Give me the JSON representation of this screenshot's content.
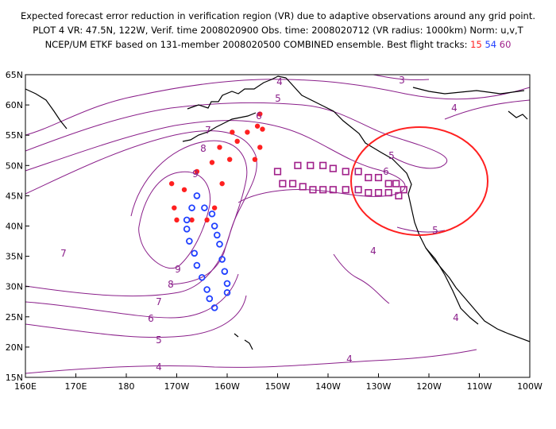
{
  "header": {
    "line1": "Expected forecast error reduction in verification region (VR) due to adaptive observations around any grid point.",
    "line2": "PLOT 4 VR: 47.5N, 122W, Verif. time 2008020900 Obs. time: 2008020712 (VR radius: 1000km) Norm: u,v,T",
    "line3_prefix": "NCEP/UM ETKF based on 131-member 2008020500 COMBINED ensemble.  Best flight tracks:",
    "track_ids": [
      "15",
      "54",
      "60"
    ]
  },
  "map": {
    "lat_labels": [
      "65N",
      "60N",
      "55N",
      "50N",
      "45N",
      "40N",
      "35N",
      "30N",
      "25N",
      "20N",
      "15N"
    ],
    "lon_labels": [
      "160E",
      "170E",
      "180",
      "170W",
      "160W",
      "150W",
      "140W",
      "130W",
      "120W",
      "110W",
      "100W"
    ],
    "contour_labels": [
      "3",
      "4",
      "4",
      "4",
      "4",
      "4",
      "4",
      "5",
      "5",
      "5",
      "5",
      "6",
      "6",
      "6",
      "7",
      "7",
      "7",
      "8",
      "8",
      "9",
      "9"
    ],
    "colors": {
      "contour": "#8a1f8a",
      "track15": "#ff2020",
      "track54": "#2040ff",
      "track60": "#a0208a",
      "vr_circle": "#ff2020",
      "coast": "#000000"
    },
    "verification_region": {
      "center_lat": 47.5,
      "center_lon": -122,
      "radius_km": 1000
    },
    "tracks": [
      {
        "id": "15",
        "marker": "filled-circle",
        "points": [
          [
            47,
            -171
          ],
          [
            43,
            -170.5
          ],
          [
            41,
            -170
          ],
          [
            41,
            -167
          ],
          [
            41,
            -164
          ],
          [
            43,
            -162.5
          ],
          [
            47,
            -161
          ],
          [
            51,
            -159.5
          ],
          [
            54,
            -158
          ],
          [
            55.5,
            -156
          ],
          [
            56.5,
            -154
          ],
          [
            58.5,
            -153.5
          ],
          [
            56,
            -153
          ],
          [
            53,
            -153.5
          ],
          [
            51,
            -154.5
          ],
          [
            55.5,
            -159
          ],
          [
            53,
            -161.5
          ],
          [
            50.5,
            -163
          ],
          [
            49,
            -166
          ],
          [
            46,
            -168.5
          ]
        ]
      },
      {
        "id": "54",
        "marker": "open-circle",
        "points": [
          [
            45,
            -166
          ],
          [
            43,
            -167
          ],
          [
            41,
            -168
          ],
          [
            39.5,
            -168
          ],
          [
            37.5,
            -167.5
          ],
          [
            35.5,
            -166.5
          ],
          [
            33.5,
            -166
          ],
          [
            31.5,
            -165
          ],
          [
            29.5,
            -164
          ],
          [
            28,
            -163.5
          ],
          [
            26.5,
            -162.5
          ],
          [
            29,
            -160
          ],
          [
            30.5,
            -160
          ],
          [
            32.5,
            -160.5
          ],
          [
            34.5,
            -161
          ],
          [
            37,
            -161.5
          ],
          [
            38.5,
            -162
          ],
          [
            40,
            -162.5
          ],
          [
            42,
            -163
          ],
          [
            43,
            -164.5
          ]
        ]
      },
      {
        "id": "60",
        "marker": "open-square",
        "points": [
          [
            49,
            -150
          ],
          [
            47,
            -149
          ],
          [
            47,
            -147
          ],
          [
            46.5,
            -145
          ],
          [
            46,
            -143
          ],
          [
            46,
            -141
          ],
          [
            46,
            -139
          ],
          [
            46,
            -136.5
          ],
          [
            46,
            -134
          ],
          [
            45.5,
            -132
          ],
          [
            45.5,
            -130
          ],
          [
            45.5,
            -128
          ],
          [
            45,
            -126
          ],
          [
            46,
            -125
          ],
          [
            47,
            -126.5
          ],
          [
            47,
            -128
          ],
          [
            48,
            -130
          ],
          [
            48,
            -132
          ],
          [
            49,
            -134
          ],
          [
            49,
            -136.5
          ],
          [
            49.5,
            -139
          ],
          [
            50,
            -141
          ],
          [
            50,
            -143.5
          ],
          [
            50,
            -146
          ]
        ]
      }
    ]
  }
}
